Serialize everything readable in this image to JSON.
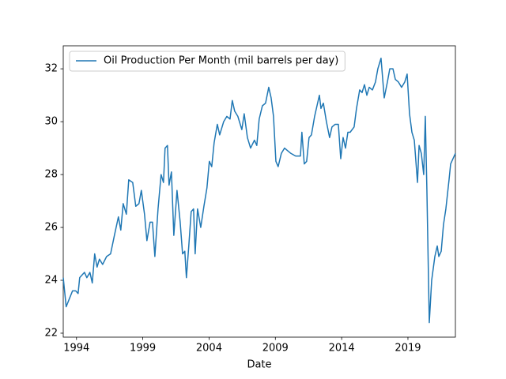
{
  "chart_data": {
    "type": "line",
    "xlabel": "Date",
    "x": [
      1993.0,
      1993.22,
      1993.46,
      1993.7,
      1993.94,
      1994.12,
      1994.24,
      1994.42,
      1994.6,
      1994.78,
      1995.01,
      1995.19,
      1995.37,
      1995.55,
      1995.73,
      1995.97,
      1996.27,
      1996.57,
      1996.86,
      1997.16,
      1997.34,
      1997.52,
      1997.76,
      1997.94,
      1998.24,
      1998.47,
      1998.71,
      1998.89,
      1999.13,
      1999.31,
      1999.55,
      1999.73,
      1999.91,
      2000.15,
      2000.38,
      2000.56,
      2000.68,
      2000.86,
      2000.98,
      2001.16,
      2001.34,
      2001.58,
      2001.82,
      2002.0,
      2002.17,
      2002.29,
      2002.47,
      2002.65,
      2002.83,
      2002.95,
      2003.13,
      2003.37,
      2003.61,
      2003.84,
      2004.02,
      2004.2,
      2004.38,
      2004.62,
      2004.8,
      2005.1,
      2005.34,
      2005.58,
      2005.75,
      2005.93,
      2006.17,
      2006.47,
      2006.65,
      2006.89,
      2007.13,
      2007.42,
      2007.6,
      2007.78,
      2008.02,
      2008.26,
      2008.5,
      2008.68,
      2008.86,
      2009.04,
      2009.21,
      2009.45,
      2009.69,
      2010.17,
      2010.53,
      2010.89,
      2011.0,
      2011.18,
      2011.36,
      2011.54,
      2011.72,
      2011.96,
      2012.14,
      2012.32,
      2012.44,
      2012.62,
      2012.85,
      2013.09,
      2013.27,
      2013.51,
      2013.75,
      2013.93,
      2014.11,
      2014.29,
      2014.47,
      2014.64,
      2014.94,
      2015.12,
      2015.36,
      2015.54,
      2015.72,
      2015.9,
      2016.08,
      2016.32,
      2016.55,
      2016.73,
      2016.97,
      2017.21,
      2017.45,
      2017.63,
      2017.87,
      2018.05,
      2018.28,
      2018.52,
      2018.76,
      2018.94,
      2019.12,
      2019.3,
      2019.48,
      2019.72,
      2019.84,
      2020.01,
      2020.19,
      2020.31,
      2020.43,
      2020.61,
      2020.79,
      2021.03,
      2021.21,
      2021.33,
      2021.51,
      2021.68,
      2021.86,
      2022.1,
      2022.22,
      2022.4,
      2022.58
    ],
    "series": [
      {
        "name": "Oil Production Per Month (mil barrels per day)",
        "color": "#1f77b4",
        "values": [
          24.1,
          23.0,
          23.3,
          23.6,
          23.6,
          23.5,
          24.1,
          24.2,
          24.3,
          24.1,
          24.3,
          23.9,
          25.0,
          24.5,
          24.8,
          24.6,
          24.9,
          25.0,
          25.7,
          26.4,
          25.9,
          26.9,
          26.5,
          27.8,
          27.7,
          26.8,
          26.9,
          27.4,
          26.5,
          25.5,
          26.2,
          26.2,
          24.9,
          26.7,
          28.0,
          27.7,
          29.0,
          29.1,
          27.6,
          28.1,
          25.7,
          27.4,
          26.2,
          25.0,
          25.1,
          24.1,
          25.3,
          26.6,
          26.7,
          25.0,
          26.7,
          26.0,
          26.8,
          27.5,
          28.5,
          28.3,
          29.2,
          29.9,
          29.5,
          30.0,
          30.2,
          30.1,
          30.8,
          30.4,
          30.2,
          29.7,
          30.3,
          29.4,
          29.0,
          29.3,
          29.1,
          30.1,
          30.6,
          30.7,
          31.3,
          30.9,
          30.2,
          28.5,
          28.3,
          28.8,
          29.0,
          28.8,
          28.7,
          28.7,
          29.6,
          28.4,
          28.5,
          29.4,
          29.5,
          30.2,
          30.6,
          31.0,
          30.5,
          30.7,
          30.0,
          29.4,
          29.8,
          29.9,
          29.9,
          28.6,
          29.4,
          29.0,
          29.6,
          29.6,
          29.8,
          30.5,
          31.2,
          31.1,
          31.4,
          31.0,
          31.3,
          31.2,
          31.5,
          32.0,
          32.4,
          30.9,
          31.5,
          32.0,
          32.0,
          31.6,
          31.5,
          31.3,
          31.5,
          31.8,
          30.3,
          29.6,
          29.3,
          27.7,
          29.1,
          28.8,
          28.0,
          30.2,
          27.4,
          22.4,
          24.0,
          24.9,
          25.3,
          24.9,
          25.1,
          26.1,
          26.7,
          27.8,
          28.4,
          28.6,
          28.8
        ]
      }
    ],
    "xlim": [
      1993.0,
      2022.58
    ],
    "ylim": [
      21.85,
      32.87
    ],
    "xticks": [
      1994,
      1999,
      2004,
      2009,
      2014,
      2019
    ],
    "yticks": [
      22,
      24,
      26,
      28,
      30,
      32
    ],
    "legend": "upper left"
  }
}
